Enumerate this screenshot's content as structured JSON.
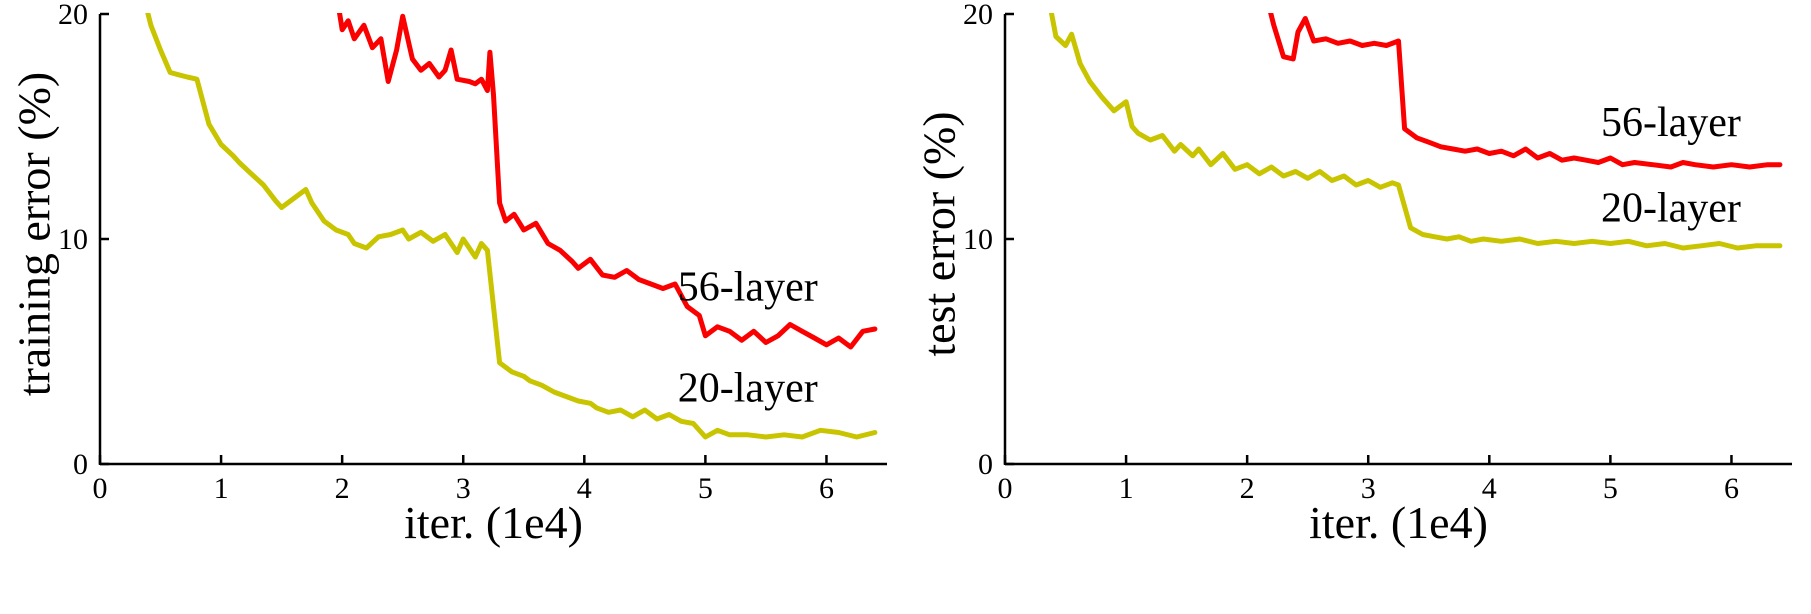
{
  "figure": {
    "background": "#ffffff",
    "axis_color": "#000000"
  },
  "chart_data": [
    {
      "type": "line",
      "title": "",
      "xlabel": "iter. (1e4)",
      "ylabel": "training error (%)",
      "xlim": [
        0,
        6.5
      ],
      "ylim": [
        0,
        20
      ],
      "xticks": [
        0,
        1,
        2,
        3,
        4,
        5,
        6
      ],
      "yticks": [
        0,
        10,
        20
      ],
      "grid": false,
      "legend_position": "none",
      "series": [
        {
          "name": "20-layer",
          "color": "#c9c400",
          "points": [
            [
              0.35,
              21
            ],
            [
              0.42,
              19.5
            ],
            [
              0.5,
              18.4
            ],
            [
              0.58,
              17.4
            ],
            [
              0.65,
              17.3
            ],
            [
              0.72,
              17.2
            ],
            [
              0.8,
              17.1
            ],
            [
              0.9,
              15.1
            ],
            [
              1.0,
              14.2
            ],
            [
              1.1,
              13.7
            ],
            [
              1.15,
              13.4
            ],
            [
              1.25,
              12.9
            ],
            [
              1.35,
              12.4
            ],
            [
              1.45,
              11.7
            ],
            [
              1.5,
              11.4
            ],
            [
              1.6,
              11.8
            ],
            [
              1.7,
              12.2
            ],
            [
              1.75,
              11.6
            ],
            [
              1.85,
              10.8
            ],
            [
              1.95,
              10.4
            ],
            [
              2.05,
              10.2
            ],
            [
              2.1,
              9.8
            ],
            [
              2.2,
              9.6
            ],
            [
              2.3,
              10.1
            ],
            [
              2.4,
              10.2
            ],
            [
              2.5,
              10.4
            ],
            [
              2.55,
              10.0
            ],
            [
              2.65,
              10.3
            ],
            [
              2.75,
              9.9
            ],
            [
              2.85,
              10.2
            ],
            [
              2.95,
              9.4
            ],
            [
              3.0,
              10.0
            ],
            [
              3.1,
              9.2
            ],
            [
              3.15,
              9.8
            ],
            [
              3.2,
              9.5
            ],
            [
              3.3,
              4.5
            ],
            [
              3.4,
              4.1
            ],
            [
              3.5,
              3.9
            ],
            [
              3.55,
              3.7
            ],
            [
              3.65,
              3.5
            ],
            [
              3.75,
              3.2
            ],
            [
              3.85,
              3.0
            ],
            [
              3.95,
              2.8
            ],
            [
              4.05,
              2.7
            ],
            [
              4.1,
              2.5
            ],
            [
              4.2,
              2.3
            ],
            [
              4.3,
              2.4
            ],
            [
              4.4,
              2.1
            ],
            [
              4.5,
              2.4
            ],
            [
              4.6,
              2.0
            ],
            [
              4.7,
              2.2
            ],
            [
              4.8,
              1.9
            ],
            [
              4.9,
              1.8
            ],
            [
              5.0,
              1.2
            ],
            [
              5.1,
              1.5
            ],
            [
              5.2,
              1.3
            ],
            [
              5.35,
              1.3
            ],
            [
              5.5,
              1.2
            ],
            [
              5.65,
              1.3
            ],
            [
              5.8,
              1.2
            ],
            [
              5.95,
              1.5
            ],
            [
              6.1,
              1.4
            ],
            [
              6.25,
              1.2
            ],
            [
              6.4,
              1.4
            ]
          ]
        },
        {
          "name": "56-layer",
          "color": "#fa0000",
          "points": [
            [
              1.95,
              21
            ],
            [
              2.0,
              19.3
            ],
            [
              2.05,
              19.7
            ],
            [
              2.1,
              18.9
            ],
            [
              2.18,
              19.5
            ],
            [
              2.25,
              18.5
            ],
            [
              2.32,
              18.9
            ],
            [
              2.38,
              17.0
            ],
            [
              2.45,
              18.4
            ],
            [
              2.5,
              19.9
            ],
            [
              2.58,
              18.0
            ],
            [
              2.65,
              17.5
            ],
            [
              2.72,
              17.8
            ],
            [
              2.8,
              17.2
            ],
            [
              2.85,
              17.5
            ],
            [
              2.9,
              18.4
            ],
            [
              2.95,
              17.1
            ],
            [
              3.05,
              17.0
            ],
            [
              3.1,
              16.9
            ],
            [
              3.15,
              17.1
            ],
            [
              3.2,
              16.6
            ],
            [
              3.22,
              18.3
            ],
            [
              3.25,
              16.4
            ],
            [
              3.3,
              11.6
            ],
            [
              3.35,
              10.8
            ],
            [
              3.42,
              11.1
            ],
            [
              3.5,
              10.4
            ],
            [
              3.6,
              10.7
            ],
            [
              3.7,
              9.8
            ],
            [
              3.8,
              9.5
            ],
            [
              3.9,
              9.0
            ],
            [
              3.95,
              8.7
            ],
            [
              4.05,
              9.1
            ],
            [
              4.15,
              8.4
            ],
            [
              4.25,
              8.3
            ],
            [
              4.35,
              8.6
            ],
            [
              4.45,
              8.2
            ],
            [
              4.55,
              8.0
            ],
            [
              4.65,
              7.8
            ],
            [
              4.75,
              8.0
            ],
            [
              4.85,
              7.0
            ],
            [
              4.95,
              6.6
            ],
            [
              5.0,
              5.7
            ],
            [
              5.1,
              6.1
            ],
            [
              5.2,
              5.9
            ],
            [
              5.3,
              5.5
            ],
            [
              5.4,
              5.9
            ],
            [
              5.5,
              5.4
            ],
            [
              5.6,
              5.7
            ],
            [
              5.7,
              6.2
            ],
            [
              5.8,
              5.9
            ],
            [
              5.9,
              5.6
            ],
            [
              6.0,
              5.3
            ],
            [
              6.1,
              5.6
            ],
            [
              6.2,
              5.2
            ],
            [
              6.3,
              5.9
            ],
            [
              6.4,
              6.0
            ]
          ]
        }
      ],
      "annotations": [
        {
          "text": "56-layer",
          "x": 5.35,
          "y": 7.9
        },
        {
          "text": "20-layer",
          "x": 5.35,
          "y": 3.4
        }
      ]
    },
    {
      "type": "line",
      "title": "",
      "xlabel": "iter. (1e4)",
      "ylabel": "test error (%)",
      "xlim": [
        0,
        6.5
      ],
      "ylim": [
        0,
        20
      ],
      "xticks": [
        0,
        1,
        2,
        3,
        4,
        5,
        6
      ],
      "yticks": [
        0,
        10,
        20
      ],
      "grid": false,
      "legend_position": "none",
      "series": [
        {
          "name": "20-layer",
          "color": "#c9c400",
          "points": [
            [
              0.35,
              21
            ],
            [
              0.42,
              19.0
            ],
            [
              0.5,
              18.6
            ],
            [
              0.55,
              19.1
            ],
            [
              0.62,
              17.8
            ],
            [
              0.7,
              17.0
            ],
            [
              0.8,
              16.3
            ],
            [
              0.9,
              15.7
            ],
            [
              1.0,
              16.1
            ],
            [
              1.05,
              15.0
            ],
            [
              1.1,
              14.7
            ],
            [
              1.2,
              14.4
            ],
            [
              1.3,
              14.6
            ],
            [
              1.4,
              13.9
            ],
            [
              1.45,
              14.2
            ],
            [
              1.55,
              13.7
            ],
            [
              1.6,
              14.0
            ],
            [
              1.7,
              13.3
            ],
            [
              1.8,
              13.8
            ],
            [
              1.9,
              13.1
            ],
            [
              2.0,
              13.3
            ],
            [
              2.1,
              12.9
            ],
            [
              2.2,
              13.2
            ],
            [
              2.3,
              12.8
            ],
            [
              2.4,
              13.0
            ],
            [
              2.5,
              12.7
            ],
            [
              2.6,
              13.0
            ],
            [
              2.7,
              12.6
            ],
            [
              2.8,
              12.8
            ],
            [
              2.9,
              12.4
            ],
            [
              3.0,
              12.6
            ],
            [
              3.1,
              12.3
            ],
            [
              3.2,
              12.5
            ],
            [
              3.25,
              12.4
            ],
            [
              3.35,
              10.5
            ],
            [
              3.45,
              10.2
            ],
            [
              3.55,
              10.1
            ],
            [
              3.65,
              10.0
            ],
            [
              3.75,
              10.1
            ],
            [
              3.85,
              9.9
            ],
            [
              3.95,
              10.0
            ],
            [
              4.1,
              9.9
            ],
            [
              4.25,
              10.0
            ],
            [
              4.4,
              9.8
            ],
            [
              4.55,
              9.9
            ],
            [
              4.7,
              9.8
            ],
            [
              4.85,
              9.9
            ],
            [
              5.0,
              9.8
            ],
            [
              5.15,
              9.9
            ],
            [
              5.3,
              9.7
            ],
            [
              5.45,
              9.8
            ],
            [
              5.6,
              9.6
            ],
            [
              5.75,
              9.7
            ],
            [
              5.9,
              9.8
            ],
            [
              6.05,
              9.6
            ],
            [
              6.2,
              9.7
            ],
            [
              6.4,
              9.7
            ]
          ]
        },
        {
          "name": "56-layer",
          "color": "#fa0000",
          "points": [
            [
              2.15,
              21
            ],
            [
              2.22,
              19.5
            ],
            [
              2.3,
              18.1
            ],
            [
              2.38,
              18.0
            ],
            [
              2.42,
              19.2
            ],
            [
              2.48,
              19.8
            ],
            [
              2.55,
              18.8
            ],
            [
              2.65,
              18.9
            ],
            [
              2.75,
              18.7
            ],
            [
              2.85,
              18.8
            ],
            [
              2.95,
              18.6
            ],
            [
              3.05,
              18.7
            ],
            [
              3.15,
              18.6
            ],
            [
              3.25,
              18.8
            ],
            [
              3.3,
              14.9
            ],
            [
              3.4,
              14.5
            ],
            [
              3.5,
              14.3
            ],
            [
              3.6,
              14.1
            ],
            [
              3.7,
              14.0
            ],
            [
              3.8,
              13.9
            ],
            [
              3.9,
              14.0
            ],
            [
              4.0,
              13.8
            ],
            [
              4.1,
              13.9
            ],
            [
              4.2,
              13.7
            ],
            [
              4.3,
              14.0
            ],
            [
              4.4,
              13.6
            ],
            [
              4.5,
              13.8
            ],
            [
              4.6,
              13.5
            ],
            [
              4.7,
              13.6
            ],
            [
              4.8,
              13.5
            ],
            [
              4.9,
              13.4
            ],
            [
              5.0,
              13.6
            ],
            [
              5.1,
              13.3
            ],
            [
              5.2,
              13.4
            ],
            [
              5.35,
              13.3
            ],
            [
              5.5,
              13.2
            ],
            [
              5.6,
              13.4
            ],
            [
              5.7,
              13.3
            ],
            [
              5.85,
              13.2
            ],
            [
              6.0,
              13.3
            ],
            [
              6.15,
              13.2
            ],
            [
              6.3,
              13.3
            ],
            [
              6.4,
              13.3
            ]
          ]
        }
      ],
      "annotations": [
        {
          "text": "56-layer",
          "x": 5.5,
          "y": 15.2
        },
        {
          "text": "20-layer",
          "x": 5.5,
          "y": 11.4
        }
      ]
    }
  ]
}
